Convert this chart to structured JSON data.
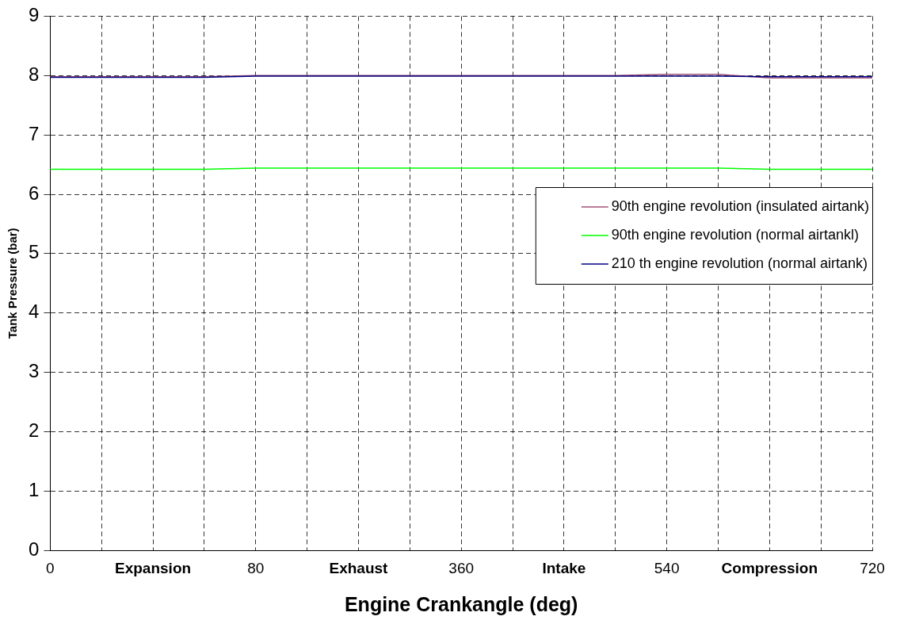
{
  "chart_data": {
    "type": "line",
    "xlabel": "Engine Crankangle (deg)",
    "ylabel": "Tank Pressure (bar)",
    "categories": [
      "0",
      null,
      "Expansion",
      null,
      "80",
      null,
      "Exhaust",
      null,
      "360",
      null,
      "Intake",
      null,
      "540",
      null,
      "Compression",
      null,
      "720"
    ],
    "ylim": [
      0,
      9
    ],
    "yticks": [
      0,
      1,
      2,
      3,
      4,
      5,
      6,
      7,
      8,
      9
    ],
    "grid": true,
    "legend": "right",
    "line_style": "solid",
    "marker": "none",
    "series": [
      {
        "name": "90th engine revolution (insulated airtank)",
        "color": "#a0527a",
        "values": [
          7.98,
          7.98,
          7.98,
          7.98,
          8.0,
          8.0,
          8.0,
          8.0,
          8.0,
          8.0,
          8.0,
          8.0,
          8.02,
          8.02,
          7.96,
          7.96,
          7.96
        ]
      },
      {
        "name": "90th engine revolution (normal airtankl)",
        "color": "#00ff00",
        "values": [
          6.42,
          6.42,
          6.42,
          6.42,
          6.44,
          6.44,
          6.44,
          6.44,
          6.44,
          6.44,
          6.44,
          6.44,
          6.44,
          6.44,
          6.42,
          6.42,
          6.42
        ]
      },
      {
        "name": "210 th engine revolution (normal airtank)",
        "color": "#000080",
        "values": [
          7.97,
          7.97,
          7.97,
          7.97,
          7.99,
          7.99,
          7.99,
          7.99,
          7.99,
          7.99,
          7.99,
          7.99,
          7.99,
          7.99,
          7.98,
          7.98,
          7.98
        ]
      }
    ]
  }
}
